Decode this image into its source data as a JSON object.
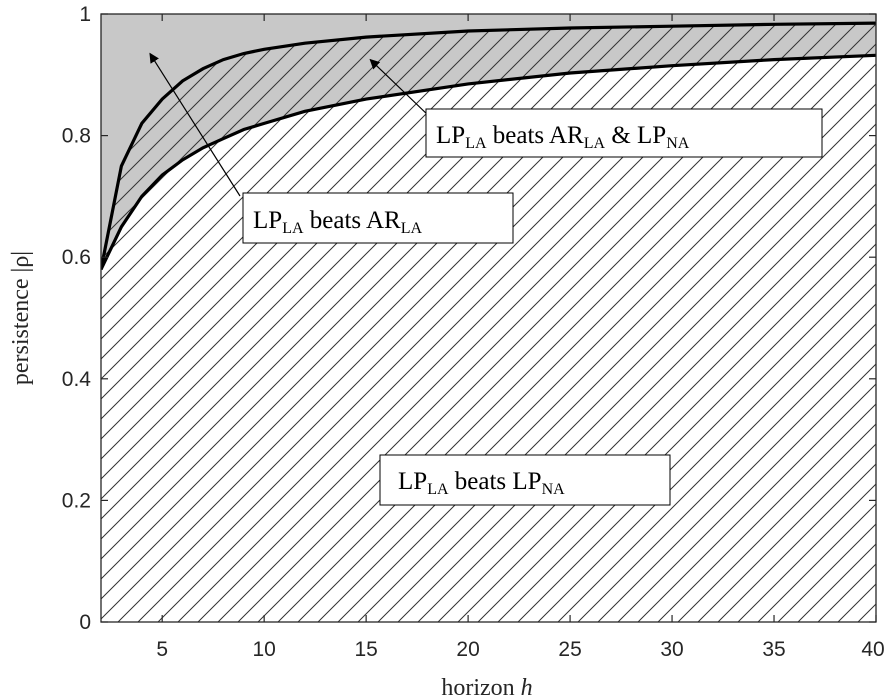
{
  "chart_data": {
    "type": "area",
    "xlabel_text": "horizon",
    "xlabel_var": "h",
    "ylabel": "persistence |ρ|",
    "xlim": [
      2,
      40
    ],
    "ylim": [
      0,
      1
    ],
    "xticks": [
      5,
      10,
      15,
      20,
      25,
      30,
      35,
      40
    ],
    "yticks": [
      0,
      0.2,
      0.4,
      0.6,
      0.8,
      1
    ],
    "ytick_labels": [
      "0",
      "0.2",
      "0.4",
      "0.6",
      "0.8",
      "1"
    ],
    "series": [
      {
        "x": [
          2,
          3,
          4,
          5,
          6,
          7,
          8,
          9,
          10,
          12,
          15,
          20,
          25,
          30,
          35,
          40
        ],
        "y": [
          0.58,
          0.75,
          0.82,
          0.86,
          0.89,
          0.91,
          0.925,
          0.935,
          0.942,
          0.952,
          0.962,
          0.972,
          0.977,
          0.98,
          0.983,
          0.985
        ]
      },
      {
        "x": [
          2,
          3,
          4,
          5,
          6,
          7,
          8,
          9,
          10,
          12,
          15,
          20,
          25,
          30,
          35,
          40
        ],
        "y": [
          0.58,
          0.65,
          0.7,
          0.735,
          0.76,
          0.78,
          0.795,
          0.81,
          0.82,
          0.84,
          0.86,
          0.885,
          0.903,
          0.915,
          0.925,
          0.932
        ]
      }
    ],
    "regions": {
      "top": "LP_LA beats AR_LA",
      "middle": "LP_LA beats AR_LA & LP_NA",
      "bottom": "LP_LA beats LP_NA"
    },
    "annotations": [
      {
        "id": "ann_ar_la",
        "parts": [
          [
            "LP",
            ""
          ],
          [
            "LA",
            "sub"
          ],
          [
            " beats AR",
            ""
          ],
          [
            "LA",
            "sub"
          ]
        ],
        "arrow_to": [
          4.4,
          0.935
        ]
      },
      {
        "id": "ann_both",
        "parts": [
          [
            "LP",
            ""
          ],
          [
            "LA",
            "sub"
          ],
          [
            " beats AR",
            ""
          ],
          [
            "LA",
            "sub"
          ],
          [
            " & LP",
            ""
          ],
          [
            "NA",
            "sub"
          ]
        ],
        "arrow_to": [
          15.2,
          0.925
        ]
      },
      {
        "id": "ann_lp_na",
        "parts": [
          [
            "LP",
            ""
          ],
          [
            "LA",
            "sub"
          ],
          [
            " beats LP",
            ""
          ],
          [
            "NA",
            "sub"
          ]
        ]
      }
    ],
    "colors": {
      "shaded": "#c8c8c8",
      "hatch": "#333333",
      "line": "#000000"
    }
  }
}
